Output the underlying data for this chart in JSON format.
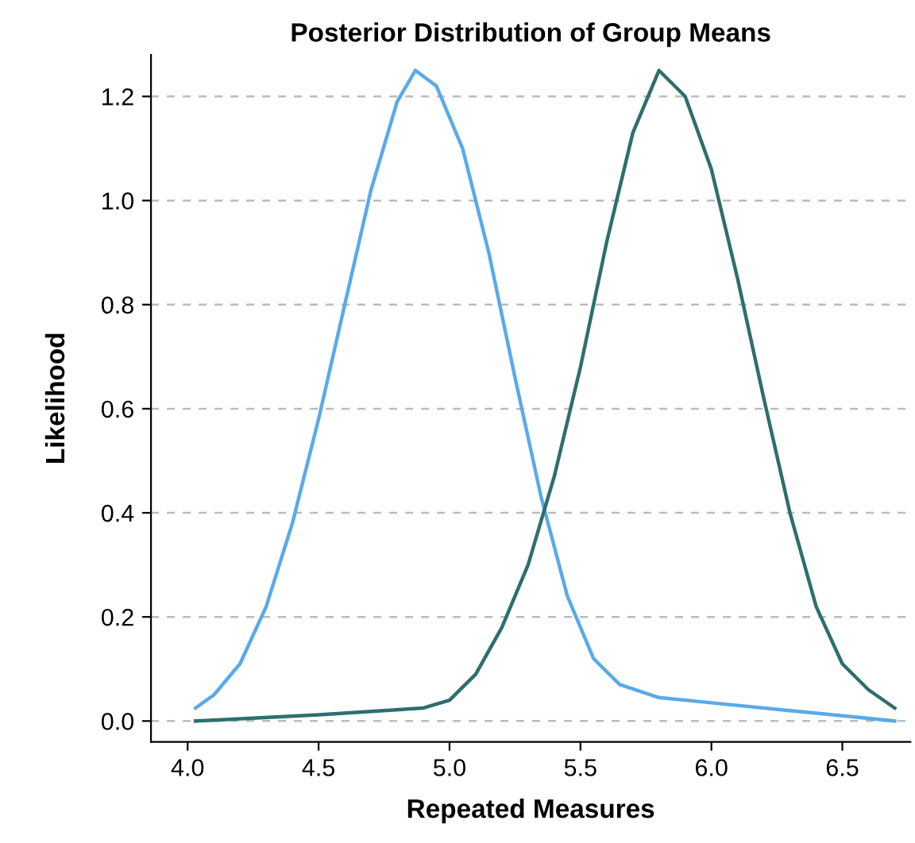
{
  "chart_data": {
    "type": "line",
    "title": "Posterior Distribution of Group Means",
    "xlabel": "Repeated Measures",
    "ylabel": "Likelihood",
    "xlim": [
      3.86,
      6.76
    ],
    "xticks": [
      {
        "value": 4.0,
        "label": "4.0"
      },
      {
        "value": 4.5,
        "label": "4.5"
      },
      {
        "value": 5.0,
        "label": "5.0"
      },
      {
        "value": 5.5,
        "label": "5.5"
      },
      {
        "value": 6.0,
        "label": "6.0"
      },
      {
        "value": 6.5,
        "label": "6.5"
      }
    ],
    "ylim": [
      -0.04,
      1.28
    ],
    "yticks": [
      {
        "value": 0,
        "label": "0.0"
      },
      {
        "value": 0.2,
        "label": "0.2"
      },
      {
        "value": 0.4,
        "label": "0.4"
      },
      {
        "value": 0.6,
        "label": "0.6"
      },
      {
        "value": 0.8,
        "label": "0.8"
      },
      {
        "value": 1.0,
        "label": "1.0"
      },
      {
        "value": 1.2,
        "label": "1.2"
      }
    ],
    "grid": "y",
    "legend": false,
    "marker": "none",
    "line_style": "solid",
    "series": [
      {
        "color": "#5aaae8",
        "x": [
          4.03,
          4.1,
          4.2,
          4.3,
          4.4,
          4.5,
          4.6,
          4.7,
          4.8,
          4.87,
          4.95,
          5.05,
          5.15,
          5.25,
          5.35,
          5.45,
          5.55,
          5.65,
          5.8,
          6.0,
          6.3,
          6.7
        ],
        "values": [
          0.025,
          0.05,
          0.11,
          0.22,
          0.38,
          0.58,
          0.8,
          1.02,
          1.19,
          1.25,
          1.22,
          1.1,
          0.9,
          0.66,
          0.43,
          0.24,
          0.12,
          0.07,
          0.045,
          0.035,
          0.02,
          0.0
        ]
      },
      {
        "color": "#2e6e6e",
        "x": [
          4.03,
          4.5,
          4.9,
          5.0,
          5.1,
          5.2,
          5.3,
          5.4,
          5.5,
          5.6,
          5.7,
          5.8,
          5.9,
          6.0,
          6.1,
          6.2,
          6.3,
          6.4,
          6.5,
          6.6,
          6.7
        ],
        "values": [
          0.0,
          0.012,
          0.025,
          0.04,
          0.09,
          0.18,
          0.3,
          0.47,
          0.68,
          0.92,
          1.13,
          1.25,
          1.2,
          1.06,
          0.85,
          0.62,
          0.4,
          0.22,
          0.11,
          0.06,
          0.025
        ]
      }
    ]
  }
}
